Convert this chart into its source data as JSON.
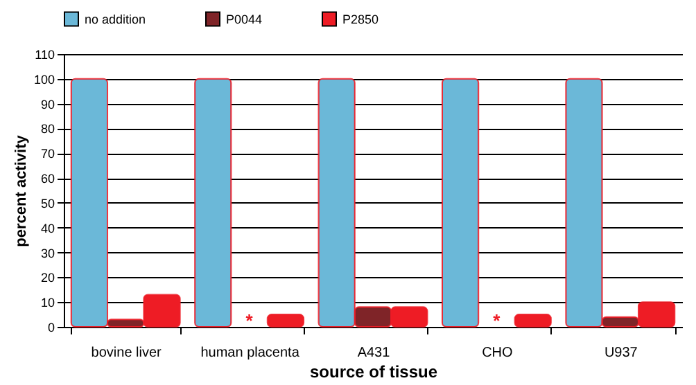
{
  "chart_data": {
    "type": "bar",
    "xlabel": "source of tissue",
    "ylabel": "percent activity",
    "categories": [
      "bovine liver",
      "human placenta",
      "A431",
      "CHO",
      "U937"
    ],
    "series": [
      {
        "name": "no addition",
        "color": "#6bb8d8",
        "values": [
          100,
          100,
          100,
          100,
          100
        ]
      },
      {
        "name": "P0044",
        "color": "#7f2428",
        "values": [
          3,
          null,
          8,
          null,
          4
        ]
      },
      {
        "name": "P2850",
        "color": "#ee1c25",
        "values": [
          13,
          5,
          8,
          5,
          10
        ]
      }
    ],
    "ylim": [
      0,
      110
    ],
    "yticks": [
      0,
      10,
      20,
      30,
      40,
      50,
      60,
      70,
      80,
      90,
      100,
      110
    ],
    "grid": "y",
    "legend": "top",
    "annotations": [
      "*",
      "*"
    ]
  }
}
